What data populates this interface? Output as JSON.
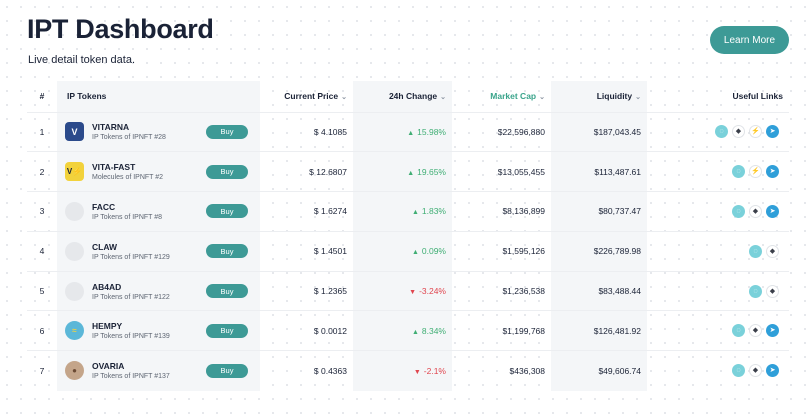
{
  "header": {
    "title": "IPT Dashboard",
    "subtitle": "Live detail token data.",
    "learn_more_label": "Learn More"
  },
  "table": {
    "columns": {
      "num": "#",
      "tokens": "IP Tokens",
      "price": "Current Price",
      "change": "24h Change",
      "mcap": "Market Cap",
      "liquidity": "Liquidity",
      "links": "Useful Links"
    },
    "chevron_icon": "chevron-down-icon",
    "buy_label": "Buy",
    "colors": {
      "accent": "#3d9a96",
      "market_cap_header": "#3aa48b",
      "positive": "#3fae74",
      "negative": "#e0464f"
    },
    "rows": [
      {
        "num": "1",
        "name": "VITARNA",
        "sub": "IP Tokens of IPNFT #28",
        "icon": "vitarna-logo",
        "icon_glyph": "V",
        "price": "$ 4.1085",
        "change": "15.98%",
        "dir": "up",
        "mcap": "$22,596,880",
        "liquidity": "$187,043.45",
        "links": [
          "site",
          "eth",
          "zap",
          "tg"
        ]
      },
      {
        "num": "2",
        "name": "VITA-FAST",
        "sub": "Molecules of IPNFT #2",
        "icon": "vitafast-logo",
        "icon_glyph": "V⚡",
        "price": "$ 12.6807",
        "change": "19.65%",
        "dir": "up",
        "mcap": "$13,055,455",
        "liquidity": "$113,487.61",
        "links": [
          "site",
          "zap",
          "tg"
        ]
      },
      {
        "num": "3",
        "name": "FACC",
        "sub": "IP Tokens of IPNFT #8",
        "icon": "placeholder-logo",
        "icon_glyph": "",
        "price": "$ 1.6274",
        "change": "1.83%",
        "dir": "up",
        "mcap": "$8,136,899",
        "liquidity": "$80,737.47",
        "links": [
          "site",
          "eth",
          "tg"
        ]
      },
      {
        "num": "4",
        "name": "CLAW",
        "sub": "IP Tokens of IPNFT #129",
        "icon": "placeholder-logo",
        "icon_glyph": "",
        "price": "$ 1.4501",
        "change": "0.09%",
        "dir": "up",
        "mcap": "$1,595,126",
        "liquidity": "$226,789.98",
        "links": [
          "site",
          "eth"
        ]
      },
      {
        "num": "5",
        "name": "AB4AD",
        "sub": "IP Tokens of IPNFT #122",
        "icon": "placeholder-logo",
        "icon_glyph": "",
        "price": "$ 1.2365",
        "change": "-3.24%",
        "dir": "down",
        "mcap": "$1,236,538",
        "liquidity": "$83,488.44",
        "links": [
          "site",
          "eth"
        ]
      },
      {
        "num": "6",
        "name": "HEMPY",
        "sub": "IP Tokens of IPNFT #139",
        "icon": "hempy-logo",
        "icon_glyph": "≈",
        "price": "$ 0.0012",
        "change": "8.34%",
        "dir": "up",
        "mcap": "$1,199,768",
        "liquidity": "$126,481.92",
        "links": [
          "site",
          "eth",
          "tg"
        ]
      },
      {
        "num": "7",
        "name": "OVARIA",
        "sub": "IP Tokens of IPNFT #137",
        "icon": "ovaria-logo",
        "icon_glyph": "●",
        "price": "$ 0.4363",
        "change": "-2.1%",
        "dir": "down",
        "mcap": "$436,308",
        "liquidity": "$49,606.74",
        "links": [
          "site",
          "eth",
          "tg"
        ]
      }
    ]
  }
}
